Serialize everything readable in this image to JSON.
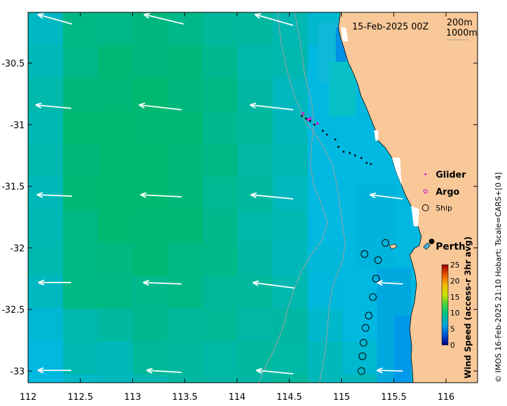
{
  "title_date": "15-Feb-2025 00Z",
  "depth_legend": {
    "contour_200": "200m",
    "contour_1000": "1000m"
  },
  "place_label": "Perth",
  "legend": {
    "glider": "Glider",
    "argo": "Argo",
    "ship": "Ship"
  },
  "colorbar": {
    "label": "Wind Speed (access-r 3hr avg)",
    "ticks": [
      "0",
      "5",
      "10",
      "15",
      "20",
      "25"
    ],
    "min": 0,
    "max": 25
  },
  "credit": "© IMOS 16-Feb-2025 21:10 Hobart; Tscale=CARS+[0 4]",
  "axes": {
    "x_ticks": [
      "112",
      "112.5",
      "113",
      "113.5",
      "114",
      "114.5",
      "115",
      "115.5",
      "116"
    ],
    "y_ticks": [
      "-30.5",
      "-31",
      "-31.5",
      "-32",
      "-32.5",
      "-33"
    ]
  },
  "colors": {
    "land": "#f9c898",
    "wind_low": "#00a0e0",
    "wind_mid": "#00c090",
    "arrow": "#ffffff",
    "glider": "#d020d0",
    "argo": "#d020d0",
    "ship": "#000000"
  },
  "map_data": {
    "lon_range": [
      112,
      116.3
    ],
    "lat_range": [
      -33.1,
      -30.1
    ],
    "wind_direction": "westward",
    "wind_speed_range_ms": [
      8,
      11
    ],
    "glider_track": [
      [
        114.62,
        -30.93
      ],
      [
        114.66,
        -30.95
      ],
      [
        114.7,
        -30.97
      ],
      [
        114.74,
        -31.0
      ],
      [
        114.82,
        -31.05
      ],
      [
        114.86,
        -31.08
      ],
      [
        114.94,
        -31.12
      ],
      [
        114.97,
        -31.18
      ],
      [
        115.02,
        -31.22
      ],
      [
        115.08,
        -31.23
      ],
      [
        115.13,
        -31.25
      ],
      [
        115.19,
        -31.27
      ],
      [
        115.24,
        -31.31
      ],
      [
        115.28,
        -31.32
      ]
    ],
    "argo_points": [
      [
        114.63,
        -30.91
      ],
      [
        114.68,
        -30.96
      ],
      [
        114.7,
        -30.95
      ],
      [
        114.77,
        -30.99
      ]
    ],
    "ship_points": [
      [
        115.22,
        -32.05
      ],
      [
        115.35,
        -32.1
      ],
      [
        115.42,
        -31.96
      ],
      [
        115.33,
        -32.25
      ],
      [
        115.3,
        -32.4
      ],
      [
        115.26,
        -32.55
      ],
      [
        115.23,
        -32.65
      ],
      [
        115.21,
        -32.77
      ],
      [
        115.2,
        -32.88
      ],
      [
        115.19,
        -33.0
      ]
    ]
  }
}
